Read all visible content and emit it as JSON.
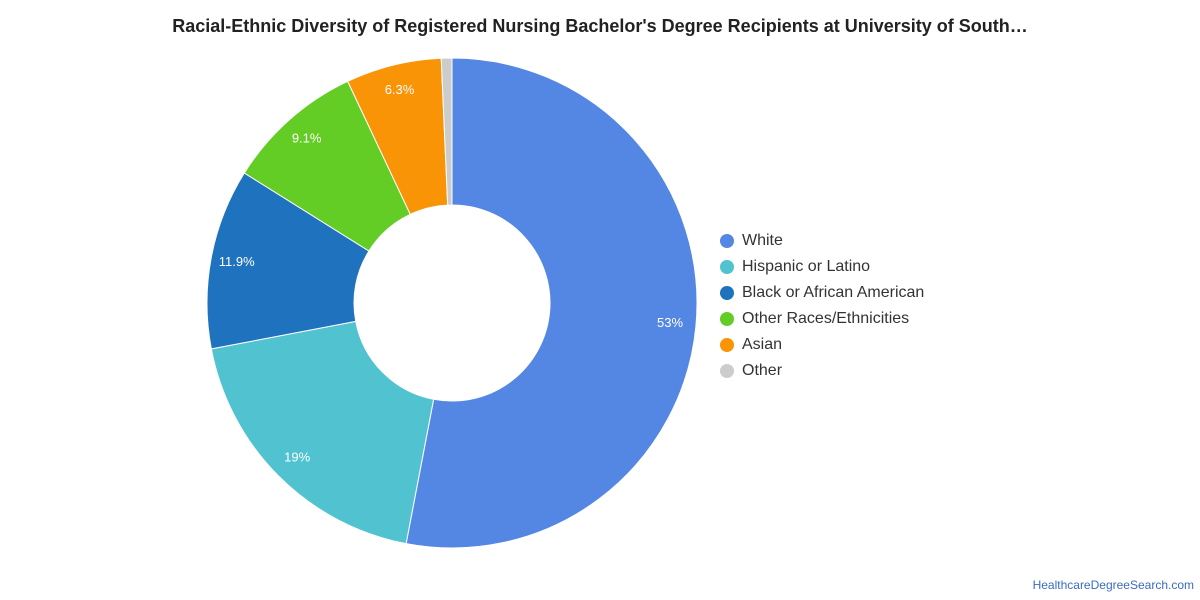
{
  "chart_data": {
    "type": "pie",
    "title": "Racial-Ethnic Diversity of Registered Nursing Bachelor's Degree Recipients at University of South…",
    "donut": true,
    "legend_position": "right",
    "slices": [
      {
        "label": "White",
        "value": 53.0,
        "display": "53%",
        "color": "#5486e4"
      },
      {
        "label": "Hispanic or Latino",
        "value": 19.0,
        "display": "19%",
        "color": "#51c2d0"
      },
      {
        "label": "Black or African American",
        "value": 11.9,
        "display": "11.9%",
        "color": "#1f72bd"
      },
      {
        "label": "Other Races/Ethnicities",
        "value": 9.1,
        "display": "9.1%",
        "color": "#63cd26"
      },
      {
        "label": "Asian",
        "value": 6.3,
        "display": "6.3%",
        "color": "#f99406"
      },
      {
        "label": "Other",
        "value": 0.7,
        "display": "",
        "color": "#cccccc"
      }
    ]
  },
  "source_credit": "HealthcareDegreeSearch.com"
}
